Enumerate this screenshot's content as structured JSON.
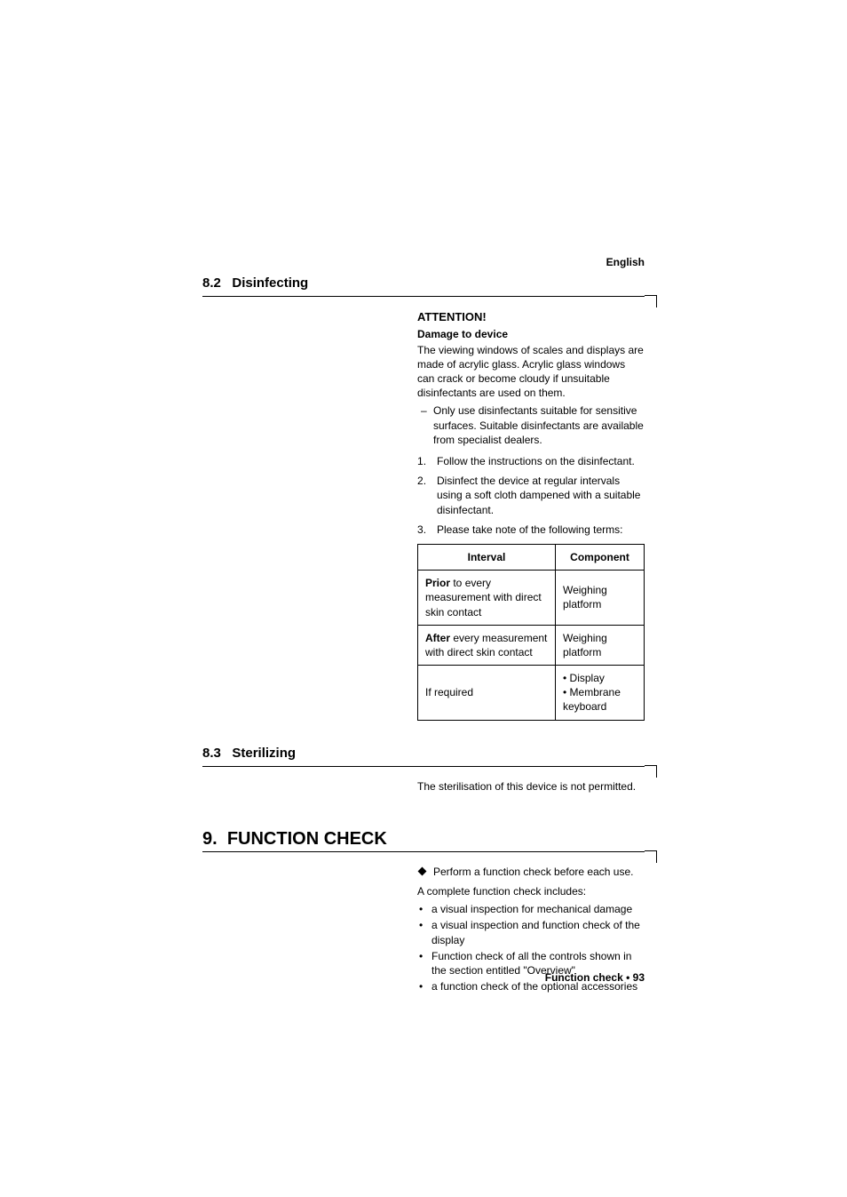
{
  "page": {
    "language_label": "English",
    "footer": "Function check • 93"
  },
  "s82": {
    "number": "8.2",
    "title": "Disinfecting",
    "attention_title": "ATTENTION!",
    "attention_sub": "Damage to device",
    "attention_body": "The viewing windows of scales and displays are made of acrylic glass. Acrylic glass windows can crack or become cloudy if unsuitable disinfectants are used on them.",
    "dash1": "Only use disinfectants suitable for sensitive surfaces. Suitable disinfectants are available from specialist dealers.",
    "step1": "Follow the instructions on the disinfectant.",
    "step2": "Disinfect the device at regular intervals using a soft cloth dampened with a suitable disinfectant.",
    "step3": "Please take note of the following terms:",
    "table": {
      "col1": "Interval",
      "col2": "Component",
      "r1c1_bold": "Prior",
      "r1c1_rest": " to every measurement with direct skin contact",
      "r1c2": "Weighing platform",
      "r2c1_bold": "After",
      "r2c1_rest": " every measurement with direct skin contact",
      "r2c2": "Weighing platform",
      "r3c1": "If required",
      "r3c2a": "Display",
      "r3c2b": "Membrane keyboard"
    }
  },
  "s83": {
    "number": "8.3",
    "title": "Sterilizing",
    "body": "The sterilisation of this device is not permitted."
  },
  "s9": {
    "number": "9.",
    "title": "FUNCTION CHECK",
    "dia1": "Perform a function check before each use.",
    "intro": "A complete function check includes:",
    "b1": "a visual inspection for mechanical damage",
    "b2": "a visual inspection and function check of the display",
    "b3": "Function check of all the controls shown in the section entitled \"Overview\"",
    "b4": "a function check of the optional accessories"
  }
}
